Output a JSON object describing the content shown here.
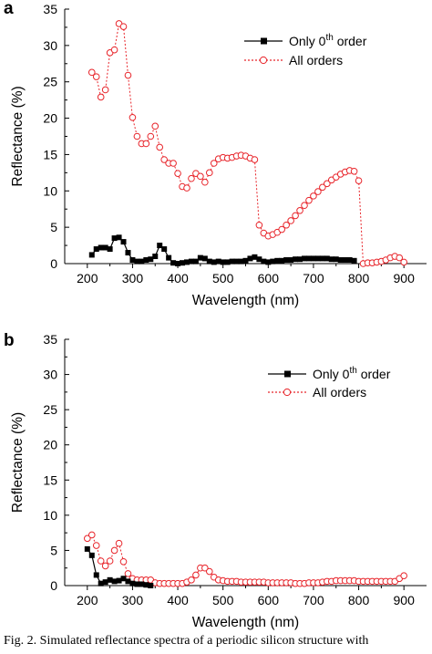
{
  "chart_data": [
    {
      "panel_label": "a",
      "type": "line",
      "xlabel": "Wavelength (nm)",
      "ylabel": "Reflectance (%)",
      "xlim": [
        150,
        950
      ],
      "ylim": [
        0,
        35
      ],
      "xticks": [
        200,
        300,
        400,
        500,
        600,
        700,
        800,
        900
      ],
      "yticks": [
        0,
        5,
        10,
        15,
        20,
        25,
        30,
        35
      ],
      "grid": false,
      "legend_position": "top-right",
      "series": [
        {
          "name": "Only 0th order",
          "legend_main": "Only 0",
          "legend_sup": "th",
          "legend_tail": " order",
          "color": "#000000",
          "marker": "filled-square",
          "line": "solid",
          "x": [
            210,
            220,
            230,
            240,
            250,
            260,
            270,
            280,
            290,
            300,
            310,
            320,
            330,
            340,
            350,
            360,
            370,
            380,
            390,
            400,
            410,
            420,
            430,
            440,
            450,
            460,
            470,
            480,
            490,
            500,
            510,
            520,
            530,
            540,
            550,
            560,
            570,
            580,
            590,
            600,
            610,
            620,
            630,
            640,
            650,
            660,
            670,
            680,
            690,
            700,
            710,
            720,
            730,
            740,
            750,
            760,
            770,
            780,
            790
          ],
          "y": [
            1.2,
            2.0,
            2.2,
            2.2,
            2.0,
            3.5,
            3.6,
            3.0,
            1.5,
            0.5,
            0.3,
            0.3,
            0.5,
            0.6,
            1.0,
            2.5,
            2.0,
            0.8,
            0.1,
            0.0,
            0.1,
            0.2,
            0.3,
            0.3,
            0.8,
            0.7,
            0.3,
            0.2,
            0.3,
            0.2,
            0.2,
            0.3,
            0.3,
            0.3,
            0.4,
            0.7,
            0.9,
            0.6,
            0.3,
            0.2,
            0.3,
            0.4,
            0.4,
            0.5,
            0.5,
            0.6,
            0.6,
            0.7,
            0.7,
            0.7,
            0.7,
            0.7,
            0.7,
            0.6,
            0.6,
            0.5,
            0.5,
            0.5,
            0.4
          ]
        },
        {
          "name": "All orders",
          "color": "#e8252b",
          "marker": "open-circle",
          "line": "dotted",
          "x": [
            210,
            220,
            230,
            240,
            250,
            260,
            270,
            280,
            290,
            300,
            310,
            320,
            330,
            340,
            350,
            360,
            370,
            380,
            390,
            400,
            410,
            420,
            430,
            440,
            450,
            460,
            470,
            480,
            490,
            500,
            510,
            520,
            530,
            540,
            550,
            560,
            570,
            580,
            590,
            600,
            610,
            620,
            630,
            640,
            650,
            660,
            670,
            680,
            690,
            700,
            710,
            720,
            730,
            740,
            750,
            760,
            770,
            780,
            790,
            800,
            810,
            820,
            830,
            840,
            850,
            860,
            870,
            880,
            890,
            900
          ],
          "y": [
            26.3,
            25.7,
            22.9,
            23.9,
            29.0,
            29.4,
            33.0,
            32.6,
            25.9,
            20.1,
            17.5,
            16.5,
            16.5,
            17.5,
            18.9,
            16.0,
            14.3,
            13.8,
            13.8,
            12.4,
            10.6,
            10.4,
            11.7,
            12.4,
            12.0,
            11.2,
            12.5,
            13.8,
            14.4,
            14.6,
            14.5,
            14.6,
            14.8,
            14.9,
            14.8,
            14.5,
            14.3,
            5.3,
            4.2,
            3.8,
            4.0,
            4.3,
            4.7,
            5.3,
            5.9,
            6.6,
            7.3,
            8.0,
            8.7,
            9.3,
            9.9,
            10.5,
            11.0,
            11.5,
            11.9,
            12.3,
            12.6,
            12.8,
            12.7,
            11.4,
            0.0,
            0.1,
            0.1,
            0.2,
            0.3,
            0.5,
            0.8,
            1.0,
            0.8,
            0.2
          ]
        }
      ]
    },
    {
      "panel_label": "b",
      "type": "line",
      "xlabel": "Wavelength (nm)",
      "ylabel": "Reflectance (%)",
      "xlim": [
        150,
        950
      ],
      "ylim": [
        0,
        35
      ],
      "xticks": [
        200,
        300,
        400,
        500,
        600,
        700,
        800,
        900
      ],
      "yticks": [
        0,
        5,
        10,
        15,
        20,
        25,
        30,
        35
      ],
      "grid": false,
      "legend_position": "top-right",
      "series": [
        {
          "name": "Only 0th order",
          "legend_main": "Only 0",
          "legend_sup": "th",
          "legend_tail": " order",
          "color": "#000000",
          "marker": "filled-square",
          "line": "solid",
          "x": [
            200,
            210,
            220,
            230,
            240,
            250,
            260,
            270,
            280,
            290,
            300,
            310,
            320,
            330,
            340
          ],
          "y": [
            5.2,
            4.3,
            1.5,
            0.3,
            0.5,
            0.8,
            0.6,
            0.7,
            1.0,
            0.6,
            0.3,
            0.2,
            0.2,
            0.1,
            0.0
          ]
        },
        {
          "name": "All orders",
          "color": "#e8252b",
          "marker": "open-circle",
          "line": "dotted",
          "x": [
            200,
            210,
            220,
            230,
            240,
            250,
            260,
            270,
            280,
            290,
            300,
            310,
            320,
            330,
            340,
            350,
            360,
            370,
            380,
            390,
            400,
            410,
            420,
            430,
            440,
            450,
            460,
            470,
            480,
            490,
            500,
            510,
            520,
            530,
            540,
            550,
            560,
            570,
            580,
            590,
            600,
            610,
            620,
            630,
            640,
            650,
            660,
            670,
            680,
            690,
            700,
            710,
            720,
            730,
            740,
            750,
            760,
            770,
            780,
            790,
            800,
            810,
            820,
            830,
            840,
            850,
            860,
            870,
            880,
            890,
            900
          ],
          "y": [
            6.7,
            7.2,
            5.7,
            3.5,
            2.8,
            3.5,
            5.0,
            6.0,
            3.4,
            1.7,
            1.0,
            0.8,
            0.8,
            0.8,
            0.8,
            0.4,
            0.3,
            0.3,
            0.3,
            0.3,
            0.3,
            0.3,
            0.5,
            0.8,
            1.5,
            2.5,
            2.5,
            2.0,
            1.2,
            0.8,
            0.7,
            0.6,
            0.6,
            0.6,
            0.5,
            0.5,
            0.5,
            0.5,
            0.5,
            0.5,
            0.4,
            0.4,
            0.4,
            0.4,
            0.4,
            0.4,
            0.3,
            0.3,
            0.3,
            0.4,
            0.4,
            0.4,
            0.5,
            0.6,
            0.6,
            0.7,
            0.7,
            0.7,
            0.7,
            0.7,
            0.6,
            0.6,
            0.6,
            0.6,
            0.6,
            0.6,
            0.6,
            0.6,
            0.6,
            1.0,
            1.4
          ]
        }
      ]
    }
  ],
  "caption": "Fig. 2. Simulated reflectance spectra of a periodic silicon structure with"
}
